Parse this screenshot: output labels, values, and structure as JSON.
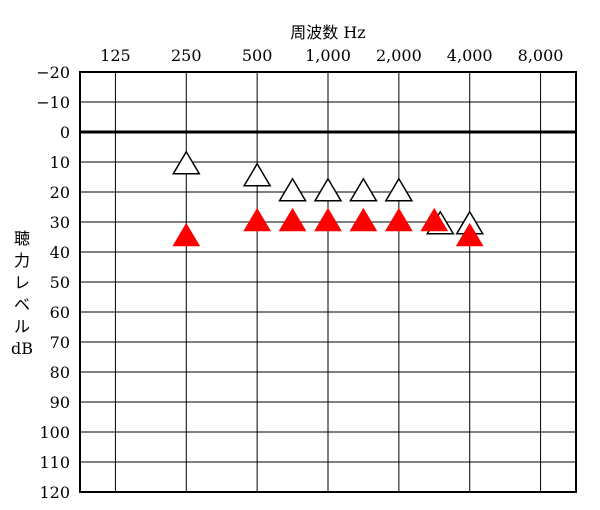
{
  "chart_data": {
    "type": "scatter",
    "title": "周波数 Hz",
    "xlabel": "周波数 Hz",
    "ylabel": "聴力レベル dB",
    "ylabel_lines": [
      "聴",
      "力",
      "レ",
      "ベ",
      "ル",
      "dB"
    ],
    "x_scale": "log2",
    "x_ticks": [
      125,
      250,
      500,
      1000,
      2000,
      4000,
      8000
    ],
    "x_tick_labels": [
      "125",
      "250",
      "500",
      "1,000",
      "2,000",
      "4,000",
      "8,000"
    ],
    "y_ticks": [
      -20,
      -10,
      0,
      10,
      20,
      30,
      40,
      50,
      60,
      70,
      80,
      90,
      100,
      110,
      120
    ],
    "y_tick_labels": [
      "−20",
      "−10",
      "0",
      "10",
      "20",
      "30",
      "40",
      "50",
      "60",
      "70",
      "80",
      "90",
      "100",
      "110",
      "120"
    ],
    "ylim": [
      -20,
      120
    ],
    "y_inverted": true,
    "grid": true,
    "reference_line_y": 0,
    "series": [
      {
        "marker": "open-triangle",
        "color": "#000000",
        "points": [
          {
            "x": 250,
            "y": 11
          },
          {
            "x": 500,
            "y": 15
          },
          {
            "x": 707,
            "y": 20
          },
          {
            "x": 1000,
            "y": 20
          },
          {
            "x": 1414,
            "y": 20
          },
          {
            "x": 2000,
            "y": 20
          },
          {
            "x": 3000,
            "y": 31
          },
          {
            "x": 4000,
            "y": 31
          }
        ]
      },
      {
        "marker": "filled-triangle",
        "color": "#ff0000",
        "points": [
          {
            "x": 250,
            "y": 35
          },
          {
            "x": 500,
            "y": 30
          },
          {
            "x": 707,
            "y": 30
          },
          {
            "x": 1000,
            "y": 30
          },
          {
            "x": 1414,
            "y": 30
          },
          {
            "x": 2000,
            "y": 30
          },
          {
            "x": 2828,
            "y": 30
          },
          {
            "x": 4000,
            "y": 35
          }
        ]
      }
    ]
  }
}
